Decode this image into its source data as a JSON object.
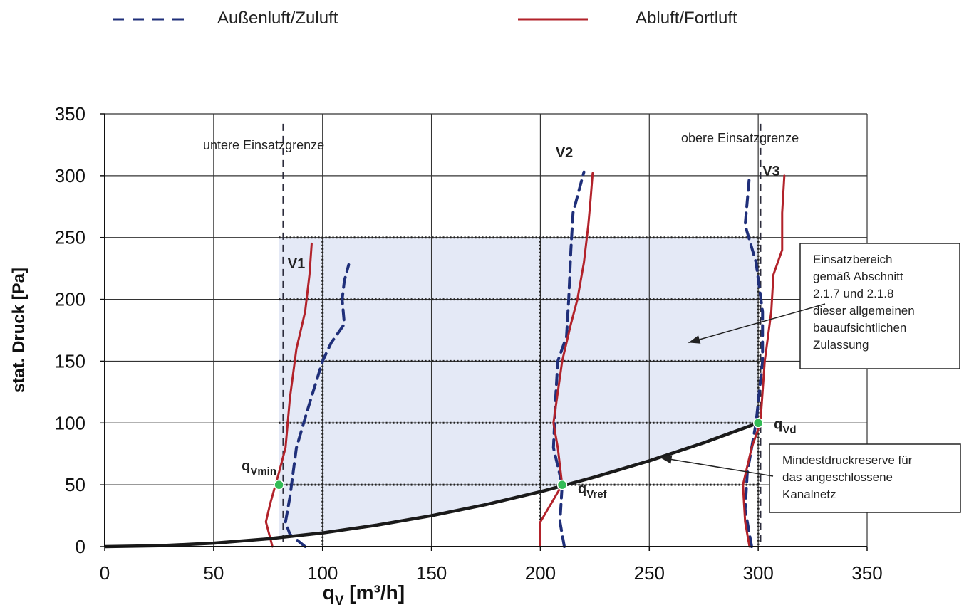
{
  "chart_data": {
    "type": "line",
    "xlabel_main": "q",
    "xlabel_sub": "V",
    "xlabel_unit": " [m³/h]",
    "ylabel": "stat. Druck [Pa]",
    "xlim": [
      0,
      350
    ],
    "ylim": [
      0,
      350
    ],
    "xticks": [
      0,
      50,
      100,
      150,
      200,
      250,
      300,
      350
    ],
    "yticks": [
      0,
      50,
      100,
      150,
      200,
      250,
      300,
      350
    ],
    "grid": true,
    "legend": [
      {
        "label": "Außenluft/Zuluft",
        "style": "dashed",
        "color": "#1f2f7a"
      },
      {
        "label": "Abluft/Fortluft",
        "style": "solid",
        "color": "#b2222a"
      }
    ],
    "series": [
      {
        "group": "V1",
        "kind": "Außenluft/Zuluft",
        "points": [
          [
            92,
            0
          ],
          [
            85,
            10
          ],
          [
            83,
            20
          ],
          [
            85,
            40
          ],
          [
            88,
            80
          ],
          [
            93,
            110
          ],
          [
            100,
            150
          ],
          [
            104,
            165
          ],
          [
            110,
            180
          ],
          [
            109,
            200
          ],
          [
            110,
            215
          ],
          [
            112,
            228
          ]
        ]
      },
      {
        "group": "V1",
        "kind": "Abluft/Fortluft",
        "points": [
          [
            77,
            0
          ],
          [
            74,
            20
          ],
          [
            76,
            35
          ],
          [
            80,
            60
          ],
          [
            83,
            80
          ],
          [
            85,
            120
          ],
          [
            88,
            160
          ],
          [
            92,
            190
          ],
          [
            94,
            220
          ],
          [
            95,
            245
          ]
        ]
      },
      {
        "group": "V2",
        "kind": "Außenluft/Zuluft",
        "points": [
          [
            211,
            0
          ],
          [
            209,
            20
          ],
          [
            210,
            50
          ],
          [
            206,
            80
          ],
          [
            207,
            120
          ],
          [
            208,
            150
          ],
          [
            212,
            170
          ],
          [
            213,
            200
          ],
          [
            214,
            240
          ],
          [
            215,
            270
          ],
          [
            218,
            290
          ],
          [
            220,
            303
          ]
        ]
      },
      {
        "group": "V2",
        "kind": "Abluft/Fortluft",
        "points": [
          [
            200,
            0
          ],
          [
            200,
            20
          ],
          [
            205,
            35
          ],
          [
            210,
            50
          ],
          [
            208,
            80
          ],
          [
            206,
            100
          ],
          [
            208,
            125
          ],
          [
            210,
            150
          ],
          [
            214,
            180
          ],
          [
            217,
            200
          ],
          [
            220,
            230
          ],
          [
            222,
            260
          ],
          [
            223,
            280
          ],
          [
            224,
            302
          ]
        ]
      },
      {
        "group": "V3",
        "kind": "Außenluft/Zuluft",
        "points": [
          [
            297,
            0
          ],
          [
            294,
            30
          ],
          [
            295,
            60
          ],
          [
            299,
            100
          ],
          [
            302,
            150
          ],
          [
            302,
            190
          ],
          [
            299,
            230
          ],
          [
            294,
            260
          ],
          [
            296,
            300
          ]
        ]
      },
      {
        "group": "V3",
        "kind": "Abluft/Fortluft",
        "points": [
          [
            296,
            0
          ],
          [
            294,
            20
          ],
          [
            293,
            50
          ],
          [
            297,
            80
          ],
          [
            301,
            100
          ],
          [
            303,
            150
          ],
          [
            306,
            190
          ],
          [
            307,
            220
          ],
          [
            311,
            240
          ],
          [
            311,
            270
          ],
          [
            312,
            300
          ]
        ]
      }
    ],
    "system_curve": {
      "points": [
        [
          0,
          0
        ],
        [
          25,
          0.7
        ],
        [
          50,
          2.8
        ],
        [
          75,
          6.3
        ],
        [
          100,
          11.1
        ],
        [
          125,
          17.4
        ],
        [
          150,
          25
        ],
        [
          175,
          34
        ],
        [
          200,
          44.4
        ],
        [
          225,
          56.3
        ],
        [
          250,
          69.4
        ],
        [
          275,
          84
        ],
        [
          300,
          100
        ]
      ]
    },
    "operating_region": {
      "x": [
        80,
        300
      ],
      "y_top": 250
    },
    "limit_lines": [
      {
        "x": 82,
        "label": "untere Einsatzgrenze"
      },
      {
        "x": 301,
        "label": "obere Einsatzgrenze"
      }
    ],
    "curve_labels": [
      {
        "text": "V1",
        "x": 88,
        "y": 225
      },
      {
        "text": "V2",
        "x": 211,
        "y": 315
      },
      {
        "text": "V3",
        "x": 306,
        "y": 300
      }
    ],
    "points": [
      {
        "main": "q",
        "sub": "Vmin",
        "x": 80,
        "y": 50
      },
      {
        "main": "q",
        "sub": "Vref",
        "x": 210,
        "y": 50
      },
      {
        "main": "q",
        "sub": "Vd",
        "x": 300,
        "y": 100
      }
    ],
    "annotations": [
      {
        "lines": [
          "Einsatzbereich",
          "gemäß Abschnitt",
          "2.1.7 und 2.1.8",
          "dieser allgemeinen",
          "bauaufsichtlichen",
          "Zulassung"
        ],
        "target": [
          268,
          165
        ]
      },
      {
        "lines": [
          "Mindestdruckreserve für",
          "das angeschlossene",
          "Kanalnetz"
        ],
        "target": [
          255,
          72
        ]
      }
    ]
  },
  "colors": {
    "zuluft": "#1f2f7a",
    "abluft": "#b2222a",
    "region": "#e4e9f6",
    "system": "#1a1a1a",
    "point": "#33bb55"
  }
}
